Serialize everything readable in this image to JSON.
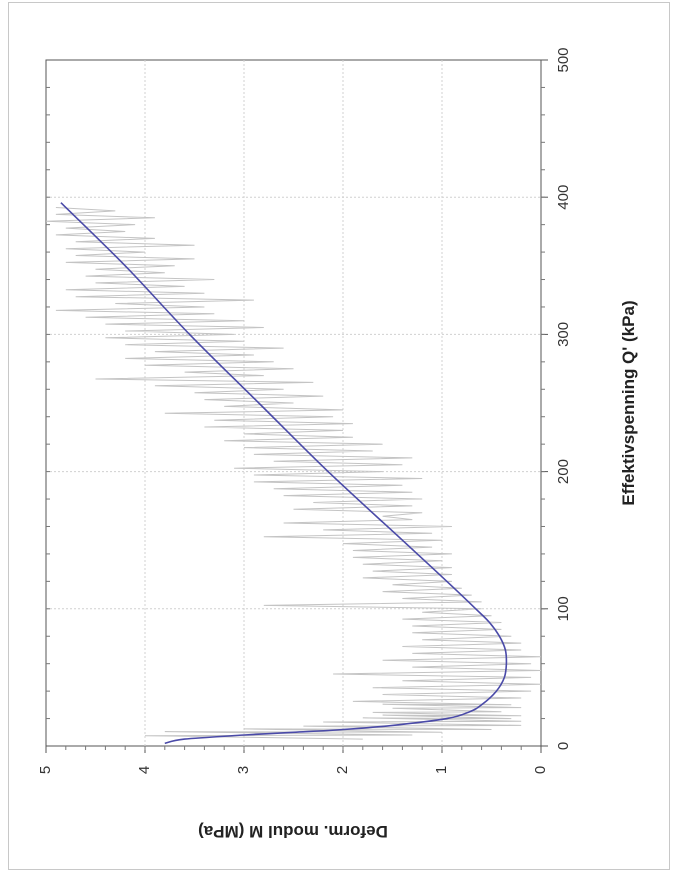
{
  "chart_data": {
    "type": "line",
    "orientation": "rotated-90-clockwise",
    "xlabel": "Effektivspenning Q' (kPa)",
    "ylabel": "Deform. modul M (MPa)",
    "xlim": [
      0,
      500
    ],
    "ylim": [
      0,
      5
    ],
    "x_ticks": [
      "0",
      "100",
      "200",
      "300",
      "400",
      "500"
    ],
    "y_ticks": [
      "0",
      "1",
      "2",
      "3",
      "4",
      "5"
    ],
    "grid": true,
    "colors": {
      "fitted": "#4a4aa8",
      "measured": "#c4c4c4",
      "grid": "#d0d0d0"
    },
    "series": [
      {
        "role": "fitted",
        "x": [
          2,
          5,
          8,
          10,
          12,
          15,
          20,
          25,
          30,
          40,
          50,
          60,
          70,
          80,
          90,
          100,
          120,
          150,
          200,
          250,
          300,
          350,
          396
        ],
        "y": [
          3.8,
          3.6,
          3.0,
          2.5,
          2.0,
          1.5,
          0.95,
          0.72,
          0.6,
          0.45,
          0.37,
          0.35,
          0.36,
          0.42,
          0.52,
          0.66,
          0.95,
          1.4,
          2.15,
          2.85,
          3.55,
          4.2,
          4.85
        ]
      },
      {
        "role": "measured",
        "x": [
          5,
          8,
          10,
          12,
          15,
          18,
          20,
          22,
          25,
          28,
          30,
          35,
          40,
          45,
          50,
          55,
          60,
          65,
          70,
          75,
          80,
          85,
          90,
          95,
          100,
          105,
          110,
          115,
          120,
          125,
          130,
          135,
          140,
          145,
          150,
          155,
          160,
          165,
          170,
          175,
          180,
          185,
          190,
          195,
          200,
          205,
          210,
          215,
          220,
          225,
          230,
          235,
          240,
          245,
          250,
          255,
          260,
          265,
          270,
          275,
          280,
          285,
          290,
          295,
          300,
          305,
          310,
          315,
          320,
          325,
          330,
          335,
          340,
          345,
          350,
          355,
          360,
          365,
          370,
          375,
          380,
          385,
          390
        ],
        "y_low": [
          1.8,
          1.3,
          1.0,
          0.5,
          0.2,
          0.2,
          0.3,
          0.2,
          0.4,
          0.2,
          0.3,
          0.2,
          0.1,
          0.0,
          0.1,
          0.0,
          0.1,
          0.0,
          0.2,
          0.2,
          0.3,
          0.4,
          0.4,
          0.5,
          0.6,
          0.6,
          0.7,
          0.8,
          0.9,
          0.9,
          0.9,
          1.0,
          0.9,
          1.1,
          1.0,
          1.1,
          0.9,
          1.3,
          1.2,
          1.3,
          1.2,
          1.3,
          1.4,
          1.2,
          1.6,
          1.4,
          1.3,
          1.7,
          1.6,
          1.9,
          2.0,
          1.9,
          2.1,
          2.0,
          2.5,
          2.2,
          2.6,
          2.3,
          2.8,
          2.5,
          2.7,
          2.9,
          2.6,
          3.0,
          3.1,
          2.8,
          3.0,
          3.3,
          3.4,
          2.9,
          3.4,
          3.6,
          3.3,
          3.8,
          3.7,
          3.5,
          4.0,
          3.5,
          3.9,
          4.2,
          4.1,
          3.9,
          4.3
        ],
        "y_high": [
          4.0,
          3.8,
          3.0,
          2.4,
          2.2,
          1.8,
          1.6,
          1.7,
          1.5,
          1.6,
          1.9,
          1.6,
          1.7,
          1.4,
          2.1,
          1.3,
          1.6,
          1.3,
          1.4,
          1.2,
          1.3,
          1.3,
          1.4,
          1.2,
          2.8,
          1.4,
          1.6,
          1.5,
          1.8,
          1.7,
          1.8,
          1.9,
          1.9,
          2.0,
          2.8,
          2.2,
          2.6,
          1.6,
          2.5,
          2.3,
          2.6,
          2.7,
          2.9,
          2.9,
          3.1,
          2.7,
          2.9,
          3.0,
          3.2,
          3.0,
          3.4,
          3.3,
          3.8,
          3.2,
          3.4,
          3.5,
          3.9,
          4.5,
          3.6,
          4.0,
          4.2,
          3.9,
          4.2,
          4.4,
          4.2,
          4.4,
          4.6,
          4.9,
          4.3,
          4.7,
          4.8,
          4.5,
          4.6,
          4.5,
          4.8,
          4.7,
          4.8,
          4.7,
          4.9,
          4.8,
          5.0,
          4.9,
          4.9
        ]
      }
    ]
  }
}
